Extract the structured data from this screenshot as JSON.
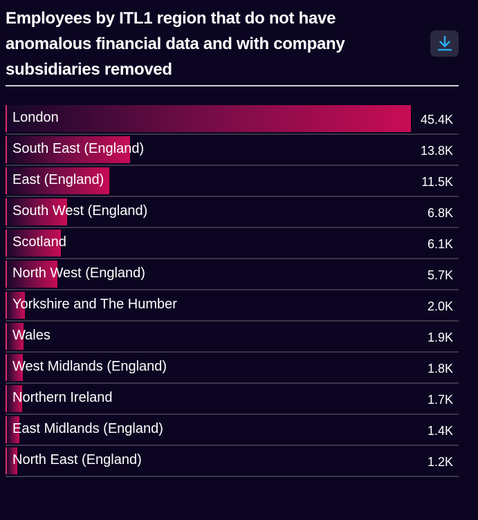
{
  "title": "Employees by ITL1 region that do not have anomalous financial data and with company subsidiaries removed",
  "download": {
    "icon": "download-icon",
    "color": "#2aa8e8"
  },
  "colors": {
    "background": "#0c0521",
    "bar_start": "#17072a",
    "bar_end": "#c80c55",
    "accent": "#e0306a"
  },
  "chart_data": {
    "type": "bar",
    "orientation": "horizontal",
    "title": "Employees by ITL1 region that do not have anomalous financial data and with company subsidiaries removed",
    "categories": [
      "London",
      "South East (England)",
      "East (England)",
      "South West (England)",
      "Scotland",
      "North West (England)",
      "Yorkshire and The Humber",
      "Wales",
      "West Midlands (England)",
      "Northern Ireland",
      "East Midlands (England)",
      "North East (England)"
    ],
    "values": [
      45400,
      13800,
      11500,
      6800,
      6100,
      5700,
      2000,
      1900,
      1800,
      1700,
      1400,
      1200
    ],
    "value_labels": [
      "45.4K",
      "13.8K",
      "11.5K",
      "6.8K",
      "6.1K",
      "5.7K",
      "2.0K",
      "1.9K",
      "1.8K",
      "1.7K",
      "1.4K",
      "1.2K"
    ],
    "xlim": [
      0,
      45400
    ],
    "grid": false,
    "legend": "none"
  }
}
